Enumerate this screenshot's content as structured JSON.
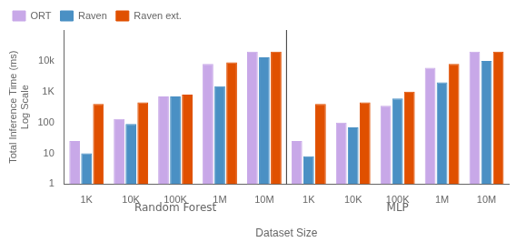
{
  "chart_data": {
    "type": "bar",
    "ylabel": "Total Inference Time (ms)\nLog Scale",
    "xlabel": "Dataset Size",
    "annotations": [
      "Random Forest",
      "MLP"
    ],
    "categories": [
      "1K",
      "10K",
      "100K",
      "1M",
      "10M",
      "1K",
      "10K",
      "100K",
      "1M",
      "10M"
    ],
    "series": [
      {
        "name": "ORT",
        "color": "#c8a8e8",
        "values": [
          25,
          130,
          700,
          8000,
          20000,
          25,
          100,
          350,
          6000,
          20000
        ]
      },
      {
        "name": "Raven",
        "color": "#4a90c4",
        "values": [
          10,
          90,
          700,
          1500,
          13000,
          8,
          70,
          600,
          2000,
          10000
        ]
      },
      {
        "name": "Raven ext.",
        "color": "#e05000",
        "values": [
          400,
          450,
          800,
          9000,
          20000,
          400,
          450,
          1000,
          8000,
          20000
        ]
      }
    ],
    "ylim": [
      1,
      100000
    ],
    "yticks": [
      1,
      10,
      100,
      {
        "value": 1000,
        "label": "1K"
      },
      {
        "value": 10000,
        "label": "10k"
      }
    ],
    "log": "y",
    "grid": false,
    "legend": "upper left"
  }
}
